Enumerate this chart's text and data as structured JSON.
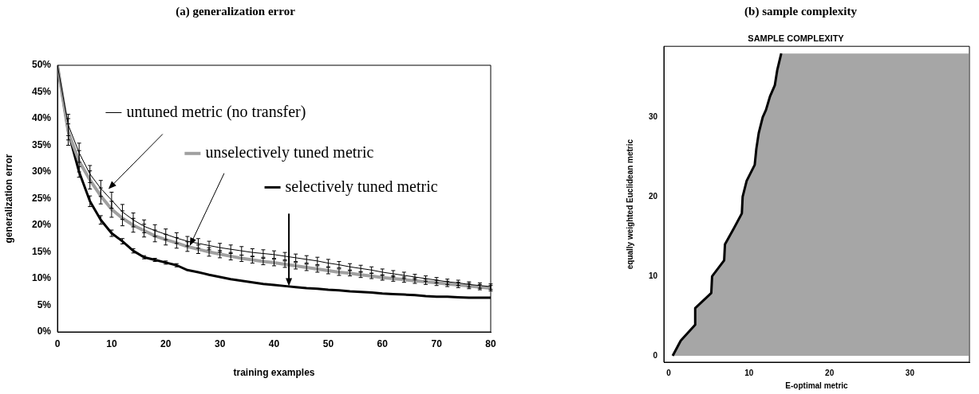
{
  "chart_data": [
    {
      "type": "line",
      "legend": "top",
      "title": "(a) generalization error",
      "xlabel": "training examples",
      "ylabel": "generalization error",
      "x": [
        0,
        2,
        4,
        6,
        8,
        10,
        12,
        14,
        16,
        18,
        20,
        22,
        24,
        26,
        28,
        30,
        32,
        34,
        36,
        38,
        40,
        42,
        44,
        46,
        48,
        50,
        52,
        54,
        56,
        58,
        60,
        62,
        64,
        66,
        68,
        70,
        72,
        74,
        76,
        78,
        80
      ],
      "series": [
        {
          "name": "untuned metric (no transfer)",
          "color": "#000000",
          "values": [
            50,
            38.8,
            33.6,
            29.6,
            26.9,
            24.7,
            22.5,
            21,
            19.8,
            19,
            18.3,
            17.6,
            17,
            16.6,
            16.2,
            15.8,
            15.5,
            15.2,
            14.9,
            14.7,
            14.5,
            14.2,
            13.9,
            13.6,
            13.3,
            12.9,
            12.6,
            12.2,
            11.9,
            11.6,
            11.2,
            10.9,
            10.6,
            10.3,
            10,
            9.7,
            9.4,
            9.2,
            8.9,
            8.7,
            8.5
          ],
          "errors": [
            null,
            2,
            1.8,
            1.6,
            1.5,
            1.5,
            1.4,
            1.3,
            1.2,
            1.1,
            1,
            1,
            0.9,
            0.9,
            0.8,
            0.8,
            0.8,
            0.8,
            0.7,
            0.7,
            0.7,
            0.7,
            0.7,
            0.7,
            0.7,
            0.7,
            0.6,
            0.6,
            0.6,
            0.6,
            0.6,
            0.6,
            0.6,
            0.5,
            0.5,
            0.5,
            0.5,
            0.5,
            0.5,
            0.5,
            0.5
          ]
        },
        {
          "name": "unselectively tuned metric",
          "color": "#a0a0a0",
          "values": [
            50,
            37.5,
            32,
            28.5,
            25.5,
            23,
            21.3,
            20,
            19,
            18,
            17.3,
            16.7,
            16,
            15.5,
            15,
            14.6,
            14.2,
            13.8,
            13.5,
            13.2,
            13,
            12.7,
            12.4,
            12.1,
            11.8,
            11.5,
            11.2,
            11,
            10.7,
            10.5,
            10.2,
            10,
            9.8,
            9.6,
            9.4,
            9.2,
            9,
            8.8,
            8.6,
            8.4,
            8.2
          ],
          "errors": [
            null,
            2.5,
            2,
            1.7,
            1.5,
            1.5,
            1.4,
            1.3,
            1.2,
            1.1,
            1,
            1,
            0.9,
            0.8,
            0.8,
            0.7,
            0.7,
            0.6,
            0.6,
            0.6,
            0.6,
            0.6,
            0.6,
            0.6,
            0.6,
            0.6,
            0.6,
            0.5,
            0.5,
            0.5,
            0.5,
            0.5,
            0.5,
            0.5,
            0.5,
            0.5,
            0.5,
            0.5,
            0.5,
            0.5,
            0.5
          ]
        },
        {
          "name": "selectively tuned metric",
          "color": "#000000",
          "values": [
            50,
            37.5,
            30,
            24.5,
            21,
            18.5,
            17,
            15.2,
            14,
            13.5,
            13,
            12.5,
            11.6,
            11.2,
            10.7,
            10.3,
            9.9,
            9.6,
            9.3,
            9,
            8.8,
            8.6,
            8.4,
            8.2,
            8.1,
            7.9,
            7.8,
            7.6,
            7.5,
            7.4,
            7.2,
            7.1,
            7,
            6.9,
            6.7,
            6.6,
            6.6,
            6.5,
            6.4,
            6.4,
            6.4
          ],
          "errors": [
            null,
            1.5,
            1,
            1,
            0.8,
            0.6,
            0.5,
            0.4,
            0.3,
            0.3,
            0.3,
            0.3,
            null,
            null,
            null,
            null,
            null,
            null,
            null,
            null,
            null,
            null,
            null,
            null,
            null,
            null,
            null,
            null,
            null,
            null,
            null,
            null,
            null,
            null,
            null,
            null,
            null,
            null,
            null,
            null,
            null
          ]
        }
      ],
      "xlim": [
        0,
        80
      ],
      "ylim": [
        0,
        50
      ],
      "xticks": [
        0,
        10,
        20,
        30,
        40,
        50,
        60,
        70,
        80
      ],
      "yticks": [
        {
          "value": 0,
          "label": "0%"
        },
        {
          "value": 5,
          "label": "5%"
        },
        {
          "value": 10,
          "label": "10%"
        },
        {
          "value": 15,
          "label": "15%"
        },
        {
          "value": 20,
          "label": "20%"
        },
        {
          "value": 25,
          "label": "25%"
        },
        {
          "value": 30,
          "label": "30%"
        },
        {
          "value": 35,
          "label": "35%"
        },
        {
          "value": 40,
          "label": "40%"
        },
        {
          "value": 45,
          "label": "45%"
        },
        {
          "value": 50,
          "label": "50%"
        }
      ]
    },
    {
      "type": "area",
      "title": "(b) sample complexity",
      "subtitle": "SAMPLE COMPLEXITY",
      "xlabel": "E-optimal metric",
      "ylabel": "equally weighted Euclidean metric",
      "series": [
        {
          "color": "#a6a6a6",
          "x": [
            0.5,
            1.5,
            3.3,
            3.3,
            5.3,
            5.4,
            6.9,
            7,
            8.1,
            9.1,
            9.2,
            9.7,
            10.7,
            10.9,
            11.2,
            11.7,
            12.1,
            12.6,
            13.2,
            13.5,
            14,
            37.3
          ],
          "values": [
            0,
            1.9,
            3.9,
            6,
            7.9,
            10,
            12,
            14,
            16,
            17.9,
            20,
            22,
            24,
            26,
            28,
            30,
            30.9,
            32.6,
            34,
            35.9,
            38,
            38
          ]
        }
      ],
      "xlim": [
        -0.6,
        37.4
      ],
      "ylim": [
        -0.8,
        38.9
      ],
      "xticks": [
        0,
        10,
        20,
        30
      ],
      "yticks": [
        0,
        10,
        20,
        30
      ]
    }
  ]
}
